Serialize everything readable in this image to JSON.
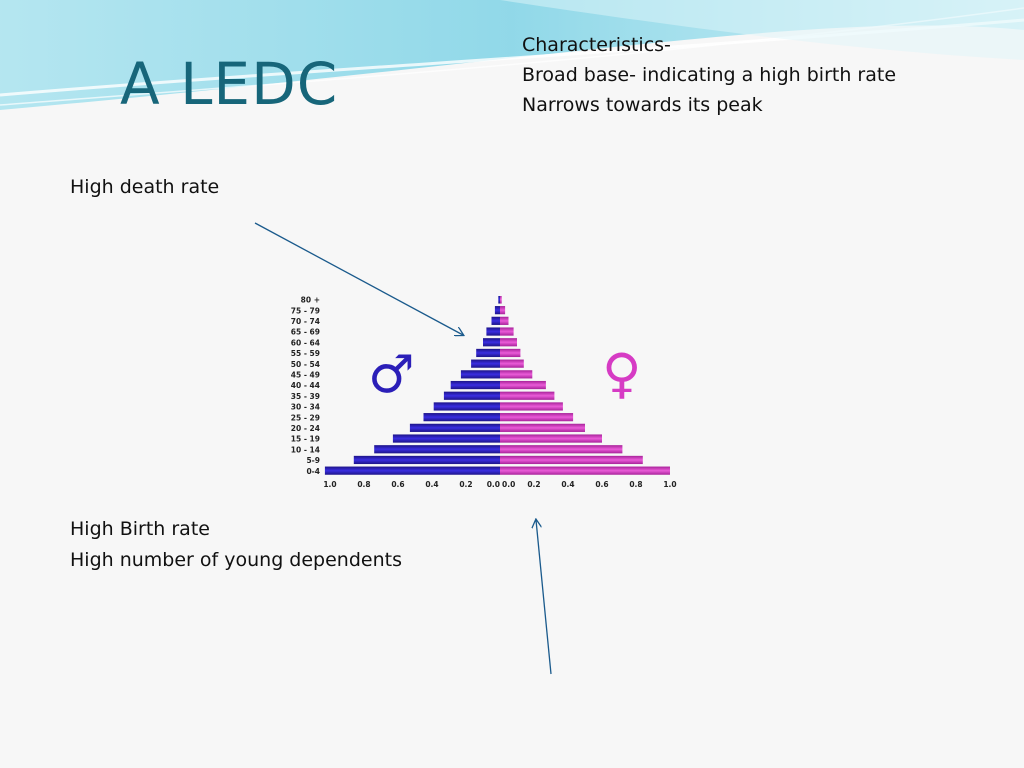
{
  "slide": {
    "title": "A LEDC",
    "characteristics": [
      "Characteristics-",
      "Broad base- indicating a high birth rate",
      "Narrows towards its peak"
    ],
    "death_note": "High death rate",
    "birth_notes": [
      "High Birth rate",
      "High number of young dependents"
    ],
    "male_symbol": "♂",
    "female_symbol": "♀",
    "colors": {
      "title": "#17667a",
      "male": "#2b1fb8",
      "female": "#d63bc4",
      "arrow": "#1a5a8c",
      "swoosh": "#7fd3e6"
    }
  },
  "chart_data": {
    "type": "bar",
    "orientation": "horizontal-pyramid",
    "categories": [
      "0-4",
      "5-9",
      "10 - 14",
      "15 - 19",
      "20 - 24",
      "25 - 29",
      "30 - 34",
      "35 - 39",
      "40 - 44",
      "45 - 49",
      "50 - 54",
      "55 - 59",
      "60 - 64",
      "65 - 69",
      "70 - 74",
      "75 - 79",
      "80 +"
    ],
    "series": [
      {
        "name": "male",
        "values": [
          1.03,
          0.86,
          0.74,
          0.63,
          0.53,
          0.45,
          0.39,
          0.33,
          0.29,
          0.23,
          0.17,
          0.14,
          0.1,
          0.08,
          0.05,
          0.03,
          0.01
        ]
      },
      {
        "name": "female",
        "values": [
          1.0,
          0.84,
          0.72,
          0.6,
          0.5,
          0.43,
          0.37,
          0.32,
          0.27,
          0.19,
          0.14,
          0.12,
          0.1,
          0.08,
          0.05,
          0.03,
          0.01
        ]
      }
    ],
    "xlim": [
      -1.0,
      1.0
    ],
    "x_tick_labels": [
      "1.0",
      "0.8",
      "0.6",
      "0.4",
      "0.2",
      "0.0",
      "0.0",
      "0.2",
      "0.4",
      "0.6",
      "0.8",
      "1.0"
    ],
    "grid": false,
    "legend": "none"
  }
}
